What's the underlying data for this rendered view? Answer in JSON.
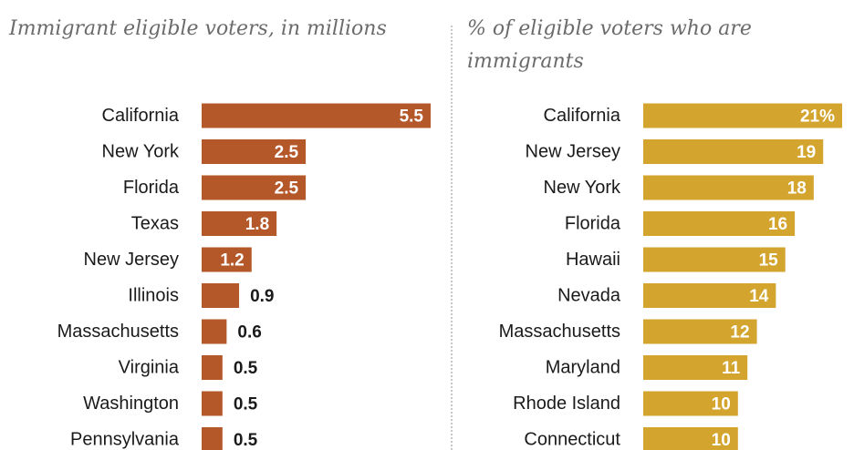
{
  "colors": {
    "left_bar": "#B4582A",
    "right_bar": "#D4A52E",
    "label_dark": "#1a1a1a",
    "label_inside": "#ffffff"
  },
  "chart_data": [
    {
      "type": "bar",
      "orientation": "horizontal",
      "title": "Immigrant eligible voters, in millions",
      "categories": [
        "California",
        "New York",
        "Florida",
        "Texas",
        "New Jersey",
        "Illinois",
        "Massachusetts",
        "Virginia",
        "Washington",
        "Pennsylvania"
      ],
      "values": [
        5.5,
        2.5,
        2.5,
        1.8,
        1.2,
        0.9,
        0.6,
        0.5,
        0.5,
        0.5
      ],
      "value_labels": [
        "5.5",
        "2.5",
        "2.5",
        "1.8",
        "1.2",
        "0.9",
        "0.6",
        "0.5",
        "0.5",
        "0.5"
      ],
      "xlim": [
        0,
        5.5
      ],
      "grid": false
    },
    {
      "type": "bar",
      "orientation": "horizontal",
      "title": "% of eligible voters who are immigrants",
      "categories": [
        "California",
        "New Jersey",
        "New York",
        "Florida",
        "Hawaii",
        "Nevada",
        "Massachusetts",
        "Maryland",
        "Rhode Island",
        "Connecticut"
      ],
      "values": [
        21,
        19,
        18,
        16,
        15,
        14,
        12,
        11,
        10,
        10
      ],
      "value_labels": [
        "21%",
        "19",
        "18",
        "16",
        "15",
        "14",
        "12",
        "11",
        "10",
        "10"
      ],
      "xlim": [
        0,
        21
      ],
      "grid": false
    }
  ]
}
